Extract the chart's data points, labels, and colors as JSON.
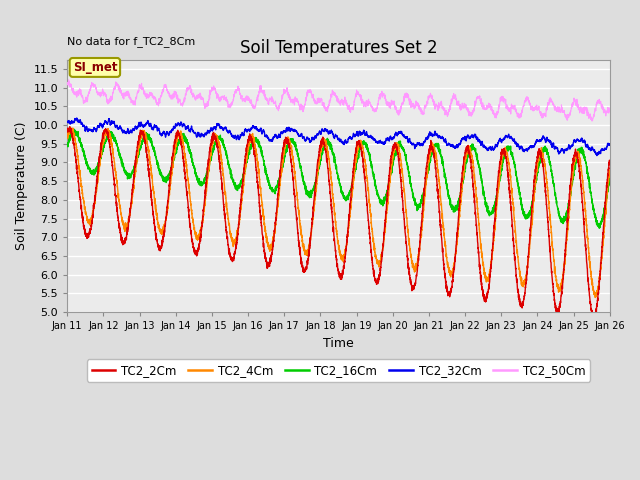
{
  "title": "Soil Temperatures Set 2",
  "no_data_text": "No data for f_TC2_8Cm",
  "xlabel": "Time",
  "ylabel": "Soil Temperature (C)",
  "ylim": [
    5.0,
    11.75
  ],
  "yticks": [
    5.0,
    5.5,
    6.0,
    6.5,
    7.0,
    7.5,
    8.0,
    8.5,
    9.0,
    9.5,
    10.0,
    10.5,
    11.0,
    11.5
  ],
  "colors": {
    "TC2_2Cm": "#dd0000",
    "TC2_4Cm": "#ff8800",
    "TC2_16Cm": "#00cc00",
    "TC2_32Cm": "#0000ee",
    "TC2_50Cm": "#ff99ff"
  },
  "legend_labels": [
    "TC2_2Cm",
    "TC2_4Cm",
    "TC2_16Cm",
    "TC2_32Cm",
    "TC2_50Cm"
  ],
  "xtick_labels": [
    "Jan 11",
    "Jan 12",
    "Jan 13",
    "Jan 14",
    "Jan 15",
    "Jan 16",
    "Jan 17",
    "Jan 18",
    "Jan 19",
    "Jan 20",
    "Jan 21",
    "Jan 22",
    "Jan 23",
    "Jan 24",
    "Jan 25",
    "Jan 26"
  ],
  "si_met_label": "SI_met",
  "fig_bg": "#dddddd",
  "plot_bg": "#ebebeb",
  "grid_color": "#ffffff"
}
